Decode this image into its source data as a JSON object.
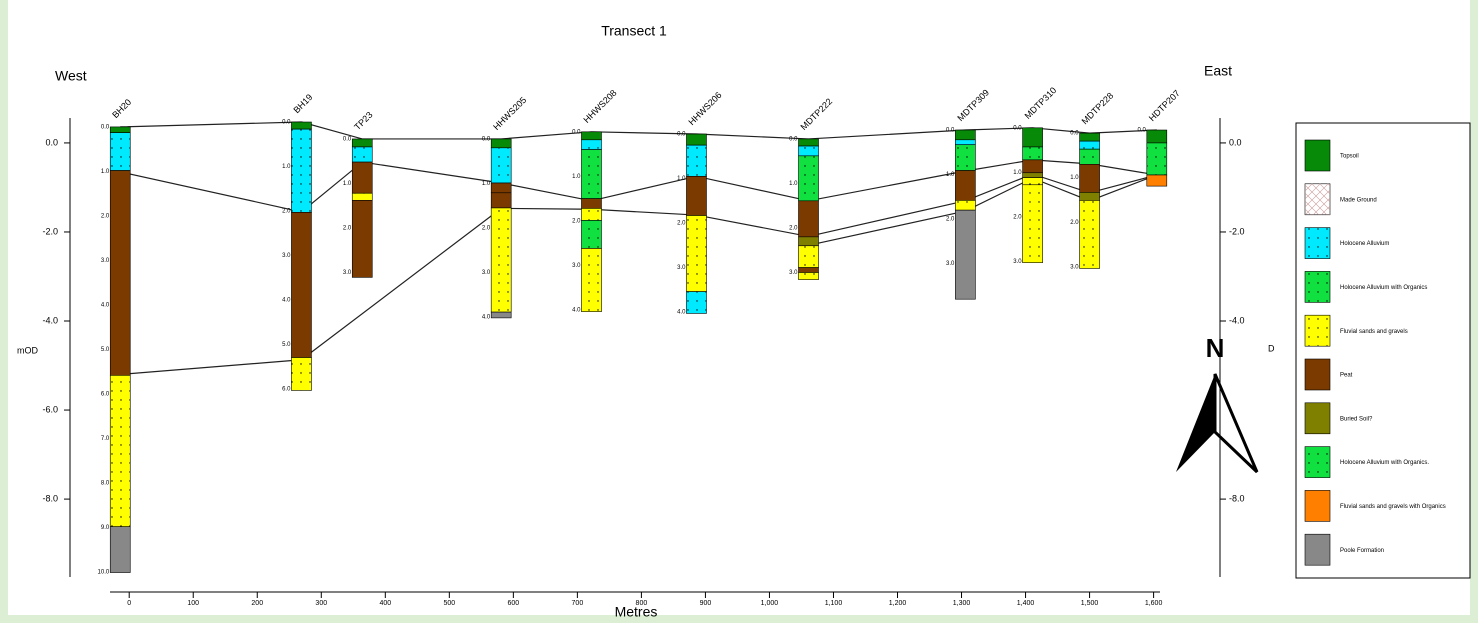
{
  "chart_data": {
    "type": "transect",
    "title": "Transect 1",
    "west": "West",
    "east": "East",
    "y_label": "mOD",
    "x_label": "Metres",
    "north": "N",
    "right_note": "D",
    "xlim": [
      -30,
      1610
    ],
    "ylim": [
      -9.75,
      0.56
    ],
    "y2lim": [
      -9.75,
      0.56
    ],
    "xticks": [
      0,
      100,
      200,
      300,
      400,
      500,
      600,
      700,
      800,
      900,
      {
        "value": 1000,
        "label": "1,000"
      },
      {
        "value": 1100,
        "label": "1,100"
      },
      {
        "value": 1200,
        "label": "1,200"
      },
      {
        "value": 1300,
        "label": "1,300"
      },
      {
        "value": 1400,
        "label": "1,400"
      },
      {
        "value": 1500,
        "label": "1,500"
      },
      {
        "value": 1600,
        "label": "1,600"
      }
    ],
    "yticks": [
      {
        "value": 0,
        "label": "0.0"
      },
      {
        "value": -2,
        "label": "-2.0"
      },
      {
        "value": -4,
        "label": "-4.0"
      },
      {
        "value": -6,
        "label": "-6.0"
      },
      {
        "value": -8,
        "label": "-8.0"
      }
    ],
    "y2ticks": [
      {
        "value": 0,
        "label": "0.0"
      },
      {
        "value": -2,
        "label": "-2.0"
      },
      {
        "value": -4,
        "label": "-4.0"
      },
      {
        "value": -8,
        "label": "-8.0"
      }
    ],
    "units": [
      {
        "name": "Topsoil",
        "color": "#078a07"
      },
      {
        "name": "Made Ground",
        "color": "#ffffff"
      },
      {
        "name": "Holocene Alluvium",
        "color": "#00eaff"
      },
      {
        "name": "Holocene Alluvium with Organics",
        "color": "#10e040"
      },
      {
        "name": "Fluvial sands and gravels",
        "color": "#ffff00"
      },
      {
        "name": "Peat",
        "color": "#7a3a00"
      },
      {
        "name": "Buried Soil?",
        "color": "#808000"
      },
      {
        "name": "Holocene Alluvium with Organics.",
        "color": "#10e040"
      },
      {
        "name": "Fluvial sands and gravels with Organics",
        "color": "#ff8000"
      },
      {
        "name": "Poole Formation",
        "color": "#888888"
      }
    ],
    "boreholes": [
      {
        "name": "BH20",
        "x": -14,
        "top": 0.36,
        "layers": [
          {
            "unit": 0,
            "thickness": 0.13
          },
          {
            "unit": 2,
            "thickness": 0.85
          },
          {
            "unit": 5,
            "thickness": 4.6
          },
          {
            "unit": 4,
            "thickness": 3.4
          },
          {
            "unit": 9,
            "thickness": 1.03
          }
        ],
        "depth_ticks": [
          {
            "value": 0,
            "label": "0.0"
          },
          {
            "value": 1,
            "label": "1.0"
          },
          {
            "value": 2,
            "label": "2.0"
          },
          {
            "value": 3,
            "label": "3.0"
          },
          {
            "value": 4,
            "label": "4.0"
          },
          {
            "value": 5,
            "label": "5.0"
          },
          {
            "value": 6,
            "label": "6.0"
          },
          {
            "value": 7,
            "label": "7.0"
          },
          {
            "value": 8,
            "label": "8.0"
          },
          {
            "value": 9,
            "label": "9.0"
          },
          {
            "value": 10,
            "label": "10.0"
          }
        ]
      },
      {
        "name": "BH19",
        "x": 269,
        "top": 0.47,
        "layers": [
          {
            "unit": 0,
            "thickness": 0.16
          },
          {
            "unit": 2,
            "thickness": 1.87
          },
          {
            "unit": 5,
            "thickness": 3.26
          },
          {
            "unit": 4,
            "thickness": 0.74
          }
        ],
        "depth_ticks": [
          {
            "value": 0,
            "label": "0.0"
          },
          {
            "value": 1,
            "label": "1.0"
          },
          {
            "value": 2,
            "label": "2.0"
          },
          {
            "value": 3,
            "label": "3.0"
          },
          {
            "value": 4,
            "label": "4.0"
          },
          {
            "value": 5,
            "label": "5.0"
          },
          {
            "value": 6,
            "label": "6.0"
          }
        ]
      },
      {
        "name": "TP23",
        "x": 364,
        "top": 0.09,
        "layers": [
          {
            "unit": 0,
            "thickness": 0.18
          },
          {
            "unit": 2,
            "thickness": 0.34
          },
          {
            "unit": 5,
            "thickness": 0.7
          },
          {
            "unit": 4,
            "thickness": 0.16
          },
          {
            "unit": 5,
            "thickness": 1.73
          }
        ],
        "depth_ticks": [
          {
            "value": 0,
            "label": "0.0"
          },
          {
            "value": 1,
            "label": "1.0"
          },
          {
            "value": 2,
            "label": "2.0"
          },
          {
            "value": 3,
            "label": "3.0"
          }
        ]
      },
      {
        "name": "HHWS205",
        "x": 581,
        "top": 0.09,
        "layers": [
          {
            "unit": 0,
            "thickness": 0.2
          },
          {
            "unit": 2,
            "thickness": 0.79
          },
          {
            "unit": 5,
            "thickness": 0.22
          },
          {
            "unit": 5,
            "thickness": 0.34
          },
          {
            "unit": 4,
            "thickness": 2.34
          },
          {
            "unit": 9,
            "thickness": 0.13
          }
        ],
        "depth_ticks": [
          {
            "value": 0,
            "label": "0.0"
          },
          {
            "value": 1,
            "label": "1.0"
          },
          {
            "value": 2,
            "label": "2.0"
          },
          {
            "value": 3,
            "label": "3.0"
          },
          {
            "value": 4,
            "label": "4.0"
          }
        ]
      },
      {
        "name": "HHWS208",
        "x": 722,
        "top": 0.25,
        "layers": [
          {
            "unit": 0,
            "thickness": 0.18
          },
          {
            "unit": 2,
            "thickness": 0.22
          },
          {
            "unit": 3,
            "thickness": 1.1
          },
          {
            "unit": 5,
            "thickness": 0.22
          },
          {
            "unit": 4,
            "thickness": 0.27
          },
          {
            "unit": 3,
            "thickness": 0.63
          },
          {
            "unit": 4,
            "thickness": 1.42
          }
        ],
        "depth_ticks": [
          {
            "value": 0,
            "label": "0.0"
          },
          {
            "value": 1,
            "label": "1.0"
          },
          {
            "value": 2,
            "label": "2.0"
          },
          {
            "value": 3,
            "label": "3.0"
          },
          {
            "value": 4,
            "label": "4.0"
          }
        ]
      },
      {
        "name": "HHWS206",
        "x": 886,
        "top": 0.2,
        "layers": [
          {
            "unit": 0,
            "thickness": 0.25
          },
          {
            "unit": 2,
            "thickness": 0.7
          },
          {
            "unit": 5,
            "thickness": 0.88
          },
          {
            "unit": 4,
            "thickness": 1.71
          },
          {
            "unit": 2,
            "thickness": 0.49
          }
        ],
        "depth_ticks": [
          {
            "value": 0,
            "label": "0.0"
          },
          {
            "value": 1,
            "label": "1.0"
          },
          {
            "value": 2,
            "label": "2.0"
          },
          {
            "value": 3,
            "label": "3.0"
          },
          {
            "value": 4,
            "label": "4.0"
          }
        ]
      },
      {
        "name": "MDTP222",
        "x": 1061,
        "top": 0.09,
        "layers": [
          {
            "unit": 0,
            "thickness": 0.16
          },
          {
            "unit": 2,
            "thickness": 0.22
          },
          {
            "unit": 3,
            "thickness": 1.01
          },
          {
            "unit": 5,
            "thickness": 0.81
          },
          {
            "unit": 6,
            "thickness": 0.2
          },
          {
            "unit": 4,
            "thickness": 0.49
          },
          {
            "unit": 5,
            "thickness": 0.11
          },
          {
            "unit": 4,
            "thickness": 0.16
          }
        ],
        "depth_ticks": [
          {
            "value": 0,
            "label": "0.0"
          },
          {
            "value": 1,
            "label": "1.0"
          },
          {
            "value": 2,
            "label": "2.0"
          },
          {
            "value": 3,
            "label": "3.0"
          }
        ]
      },
      {
        "name": "MDTP309",
        "x": 1306,
        "top": 0.29,
        "layers": [
          {
            "unit": 0,
            "thickness": 0.22
          },
          {
            "unit": 2,
            "thickness": 0.11
          },
          {
            "unit": 3,
            "thickness": 0.58
          },
          {
            "unit": 5,
            "thickness": 0.67
          },
          {
            "unit": 4,
            "thickness": 0.22
          },
          {
            "unit": 9,
            "thickness": 2.0
          }
        ],
        "depth_ticks": [
          {
            "value": 0,
            "label": "0.0"
          },
          {
            "value": 1,
            "label": "1.0"
          },
          {
            "value": 2,
            "label": "2.0"
          },
          {
            "value": 3,
            "label": "3.0"
          }
        ]
      },
      {
        "name": "MDTP310",
        "x": 1411,
        "top": 0.34,
        "layers": [
          {
            "unit": 0,
            "thickness": 0.43
          },
          {
            "unit": 3,
            "thickness": 0.29
          },
          {
            "unit": 5,
            "thickness": 0.29
          },
          {
            "unit": 6,
            "thickness": 0.11
          },
          {
            "unit": 4,
            "thickness": 0.16
          },
          {
            "unit": 4,
            "thickness": 1.75
          }
        ],
        "depth_ticks": [
          {
            "value": 0,
            "label": "0.0"
          },
          {
            "value": 1,
            "label": "1.0"
          },
          {
            "value": 2,
            "label": "2.0"
          },
          {
            "value": 3,
            "label": "3.0"
          }
        ]
      },
      {
        "name": "MDTP228",
        "x": 1500,
        "top": 0.22,
        "layers": [
          {
            "unit": 0,
            "thickness": 0.18
          },
          {
            "unit": 2,
            "thickness": 0.18
          },
          {
            "unit": 3,
            "thickness": 0.34
          },
          {
            "unit": 5,
            "thickness": 0.63
          },
          {
            "unit": 6,
            "thickness": 0.18
          },
          {
            "unit": 4,
            "thickness": 1.53
          }
        ],
        "depth_ticks": [
          {
            "value": 0,
            "label": "0.0"
          },
          {
            "value": 1,
            "label": "1.0"
          },
          {
            "value": 2,
            "label": "2.0"
          },
          {
            "value": 3,
            "label": "3.0"
          }
        ]
      },
      {
        "name": "HDTP207",
        "x": 1605,
        "top": 0.29,
        "layers": [
          {
            "unit": 0,
            "thickness": 0.29
          },
          {
            "unit": 3,
            "thickness": 0.72
          },
          {
            "unit": 8,
            "thickness": 0.25
          }
        ],
        "depth_ticks": [
          {
            "value": 0,
            "label": "0.0"
          }
        ]
      }
    ],
    "lines": [
      {
        "x": [
          -14,
          269,
          364,
          581,
          722,
          886,
          1061,
          1306,
          1411,
          1500,
          1605
        ],
        "y": [
          0.36,
          0.47,
          0.09,
          0.09,
          0.25,
          0.2,
          0.09,
          0.29,
          0.34,
          0.22,
          0.29
        ]
      },
      {
        "x": [
          -14,
          269,
          364,
          581,
          722,
          886,
          1061,
          1306,
          1411,
          1500,
          1605
        ],
        "y": [
          -0.65,
          -1.55,
          -0.43,
          -0.9,
          -1.3,
          -0.75,
          -1.3,
          -0.63,
          -0.38,
          -0.47,
          -0.72
        ]
      },
      {
        "x": [
          -14,
          269,
          581,
          722,
          886,
          1061,
          1306,
          1411,
          1500,
          1605
        ],
        "y": [
          -5.2,
          -4.87,
          -1.47,
          -1.49,
          -1.62,
          -2.1,
          -1.3,
          -0.7,
          -1.12,
          -0.72
        ]
      },
      {
        "x": [
          1061,
          1306,
          1411,
          1500,
          1605
        ],
        "y": [
          -2.3,
          -1.53,
          -0.79,
          -1.3,
          -0.72
        ]
      }
    ]
  }
}
